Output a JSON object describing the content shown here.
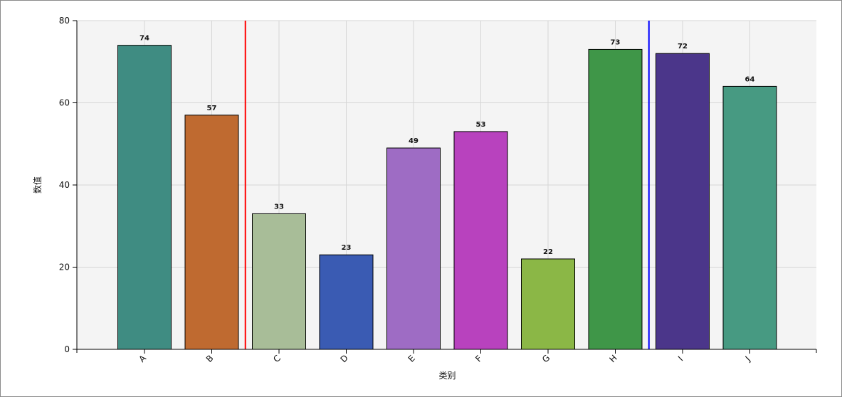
{
  "chart_data": {
    "type": "bar",
    "title": "",
    "xlabel": "类别",
    "ylabel": "数值",
    "categories": [
      "A",
      "B",
      "C",
      "D",
      "E",
      "F",
      "G",
      "H",
      "I",
      "J"
    ],
    "values": [
      74,
      57,
      33,
      23,
      49,
      53,
      22,
      73,
      72,
      64
    ],
    "bar_colors": [
      "#3f8c82",
      "#bf6a30",
      "#a8bd98",
      "#3a5bb3",
      "#9e6cc4",
      "#b842be",
      "#8bb746",
      "#3f9648",
      "#4b368a",
      "#479a82"
    ],
    "ylim": [
      0,
      80
    ],
    "y_ticks": [
      0,
      20,
      40,
      60,
      80
    ],
    "grid": true,
    "plot_background": "#f4f4f4",
    "grid_color": "#d6d6d6",
    "reference_lines": [
      {
        "color": "#ff0000",
        "between": [
          "B",
          "C"
        ]
      },
      {
        "color": "#0000ff",
        "between": [
          "H",
          "I"
        ]
      }
    ],
    "data_labels": true,
    "legend": "none"
  }
}
